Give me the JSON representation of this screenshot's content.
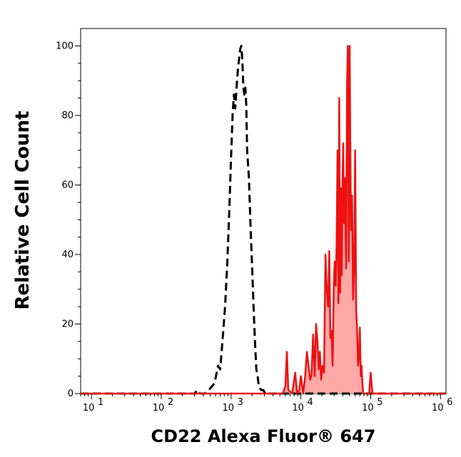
{
  "chart_data": {
    "type": "area",
    "xlabel": "CD22 Alexa Fluor® 647",
    "ylabel": "Relative Cell Count",
    "x_scale": "log",
    "xlim": [
      7,
      1200000
    ],
    "ylim": [
      0,
      105
    ],
    "grid": false,
    "legend": "none",
    "x_ticks": [
      {
        "value": 10,
        "base": "10",
        "exp": "1"
      },
      {
        "value": 100,
        "base": "10",
        "exp": "2"
      },
      {
        "value": 1000,
        "base": "10",
        "exp": "3"
      },
      {
        "value": 10000,
        "base": "10",
        "exp": "4"
      },
      {
        "value": 100000,
        "base": "10",
        "exp": "5"
      },
      {
        "value": 1000000,
        "base": "10",
        "exp": "6"
      }
    ],
    "y_ticks": [
      0,
      20,
      40,
      60,
      80,
      100
    ],
    "series": [
      {
        "style": "dashed",
        "color": "#000000",
        "fill": "none",
        "points": [
          [
            7,
            0
          ],
          [
            300,
            0
          ],
          [
            330,
            1
          ],
          [
            360,
            0
          ],
          [
            420,
            0
          ],
          [
            480,
            1
          ],
          [
            530,
            2
          ],
          [
            580,
            3
          ],
          [
            650,
            8
          ],
          [
            700,
            7
          ],
          [
            760,
            16
          ],
          [
            820,
            25
          ],
          [
            880,
            37
          ],
          [
            940,
            52
          ],
          [
            1000,
            68
          ],
          [
            1050,
            80
          ],
          [
            1100,
            86
          ],
          [
            1150,
            82
          ],
          [
            1200,
            88
          ],
          [
            1250,
            93
          ],
          [
            1300,
            96
          ],
          [
            1350,
            99
          ],
          [
            1400,
            100
          ],
          [
            1450,
            96
          ],
          [
            1500,
            88
          ],
          [
            1550,
            86
          ],
          [
            1600,
            88
          ],
          [
            1650,
            83
          ],
          [
            1700,
            70
          ],
          [
            1800,
            62
          ],
          [
            1900,
            48
          ],
          [
            2000,
            37
          ],
          [
            2100,
            25
          ],
          [
            2200,
            15
          ],
          [
            2300,
            7
          ],
          [
            2400,
            5
          ],
          [
            2500,
            2
          ],
          [
            2700,
            1
          ],
          [
            2900,
            1
          ],
          [
            3100,
            0
          ],
          [
            1200000,
            0
          ]
        ]
      },
      {
        "style": "solid",
        "color": "#ee1111",
        "fill": "#ffa8a8",
        "points": [
          [
            7,
            0
          ],
          [
            5500,
            0
          ],
          [
            6000,
            2
          ],
          [
            6300,
            12
          ],
          [
            6600,
            1
          ],
          [
            7500,
            0
          ],
          [
            8300,
            6
          ],
          [
            8800,
            0
          ],
          [
            9500,
            1
          ],
          [
            10000,
            5
          ],
          [
            10800,
            0
          ],
          [
            11500,
            5
          ],
          [
            12200,
            12
          ],
          [
            13000,
            7
          ],
          [
            13600,
            4
          ],
          [
            14200,
            5
          ],
          [
            15000,
            17
          ],
          [
            15800,
            5
          ],
          [
            16500,
            20
          ],
          [
            17300,
            15
          ],
          [
            18000,
            7
          ],
          [
            18700,
            12
          ],
          [
            19500,
            4
          ],
          [
            20500,
            8
          ],
          [
            21500,
            6
          ],
          [
            22500,
            40
          ],
          [
            23500,
            30
          ],
          [
            24500,
            25
          ],
          [
            25500,
            41
          ],
          [
            26500,
            16
          ],
          [
            27500,
            18
          ],
          [
            28500,
            8
          ],
          [
            29500,
            30
          ],
          [
            30500,
            38
          ],
          [
            31500,
            31
          ],
          [
            32500,
            43
          ],
          [
            33500,
            70
          ],
          [
            34500,
            26
          ],
          [
            35500,
            85
          ],
          [
            36500,
            29
          ],
          [
            37500,
            59
          ],
          [
            38500,
            34
          ],
          [
            39500,
            61
          ],
          [
            40500,
            72
          ],
          [
            41500,
            49
          ],
          [
            42500,
            62
          ],
          [
            43500,
            48
          ],
          [
            44500,
            36
          ],
          [
            46000,
            90
          ],
          [
            47000,
            100
          ],
          [
            48500,
            38
          ],
          [
            50000,
            100
          ],
          [
            52000,
            47
          ],
          [
            54000,
            57
          ],
          [
            56000,
            27
          ],
          [
            58000,
            36
          ],
          [
            60000,
            70
          ],
          [
            62000,
            24
          ],
          [
            64000,
            18
          ],
          [
            66000,
            8
          ],
          [
            68000,
            11
          ],
          [
            70000,
            19
          ],
          [
            72000,
            5
          ],
          [
            74000,
            8
          ],
          [
            76000,
            3
          ],
          [
            78000,
            0
          ],
          [
            95000,
            0
          ],
          [
            100000,
            6
          ],
          [
            106000,
            0
          ],
          [
            1200000,
            0
          ]
        ]
      }
    ]
  }
}
